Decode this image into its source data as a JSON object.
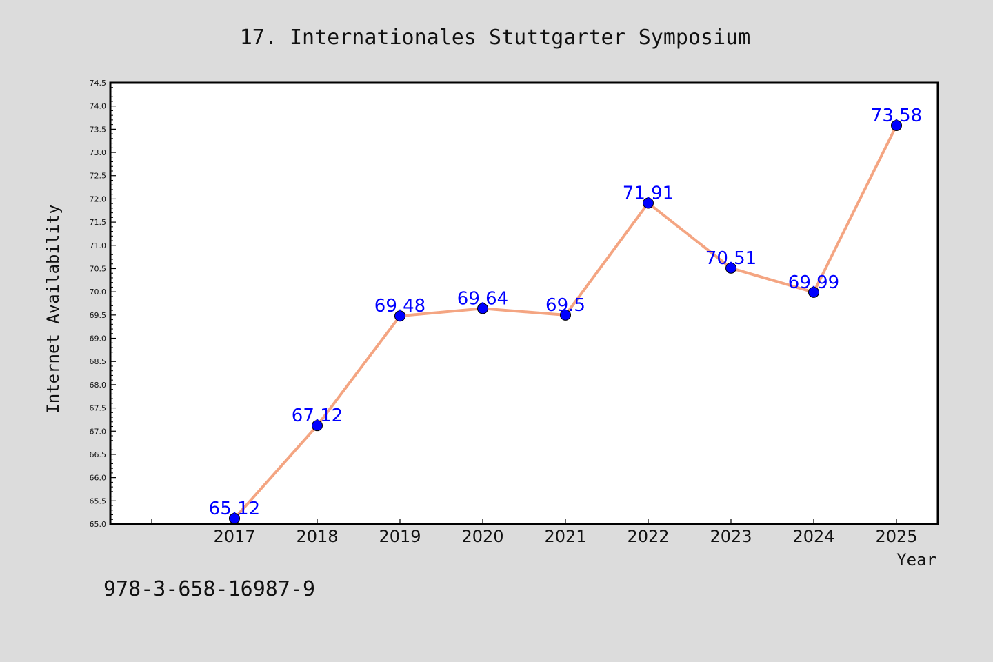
{
  "footnote": "978-3-658-16987-9",
  "colors": {
    "background": "#dcdcdc",
    "plot_background": "#ffffff",
    "line": "#f4a582",
    "marker": "#0000ff",
    "data_label": "#0000ff",
    "frame": "#000000"
  },
  "chart_data": {
    "type": "line",
    "title": "17. Internationales Stuttgarter Symposium",
    "xlabel": "Year",
    "ylabel": "Internet Availability",
    "categories": [
      "2017",
      "2018",
      "2019",
      "2020",
      "2021",
      "2022",
      "2023",
      "2024",
      "2025"
    ],
    "series": [
      {
        "values": [
          65.12,
          67.12,
          69.48,
          69.64,
          69.5,
          71.91,
          70.51,
          69.99,
          73.58
        ],
        "labels": [
          "65.12",
          "67.12",
          "69.48",
          "69.64",
          "69.5",
          "71.91",
          "70.51",
          "69.99",
          "73.58"
        ]
      }
    ],
    "ylim": [
      65.0,
      74.5
    ],
    "y_major_step": 0.5,
    "y_tick_labels": [
      "65.0",
      "65.5",
      "66.0",
      "66.5",
      "67.0",
      "67.5",
      "68.0",
      "68.5",
      "69.0",
      "69.5",
      "70.0",
      "70.5",
      "71.0",
      "71.5",
      "72.0",
      "72.5",
      "73.0",
      "73.5",
      "74.0",
      "74.5"
    ],
    "grid": false,
    "legend": "none"
  }
}
